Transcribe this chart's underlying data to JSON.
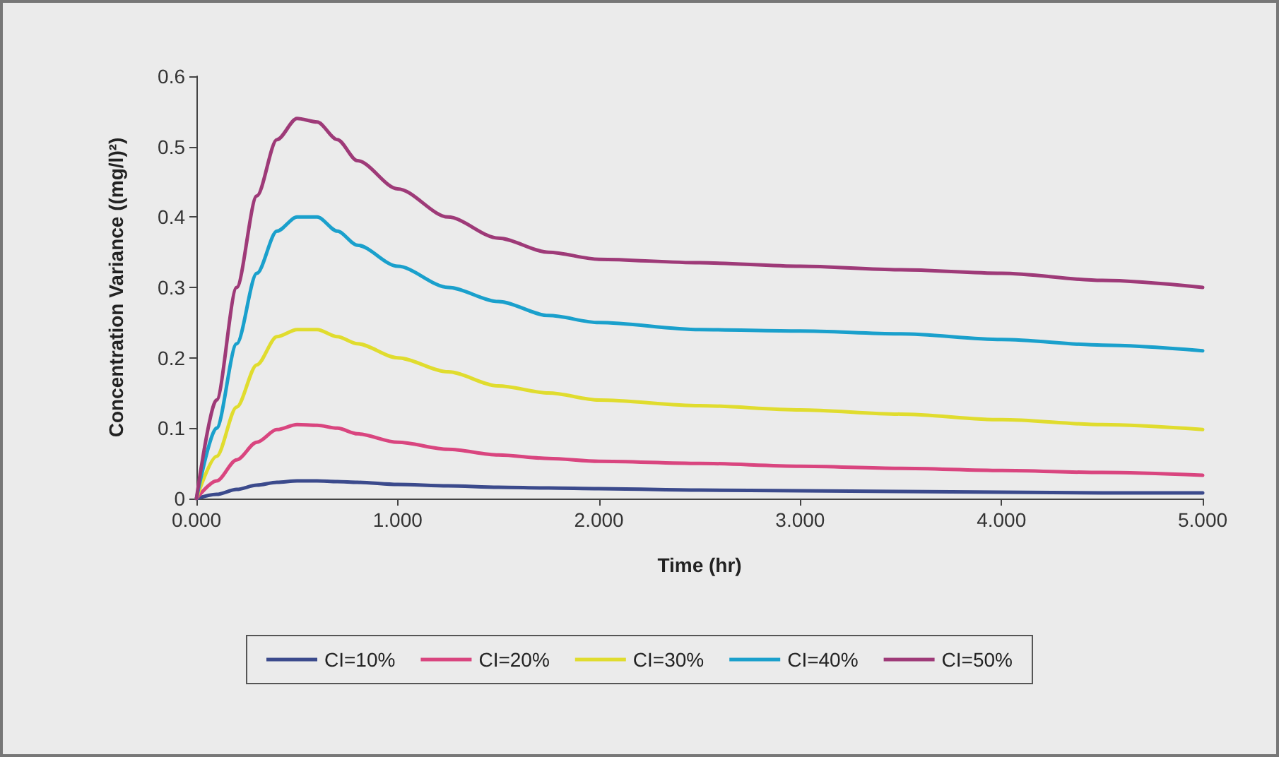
{
  "chart_data": {
    "type": "line",
    "xlabel": "Time (hr)",
    "ylabel": "Concentration Variance ((mg/l)²)",
    "x": [
      0,
      0.1,
      0.2,
      0.3,
      0.4,
      0.5,
      0.6,
      0.7,
      0.8,
      1.0,
      1.25,
      1.5,
      1.75,
      2,
      2.5,
      3,
      3.5,
      4,
      4.5,
      5
    ],
    "series": [
      {
        "name": "CI=10%",
        "color": "#3b4a8c",
        "values": [
          0,
          0.006,
          0.013,
          0.019,
          0.023,
          0.025,
          0.025,
          0.024,
          0.023,
          0.02,
          0.018,
          0.016,
          0.015,
          0.014,
          0.012,
          0.011,
          0.01,
          0.009,
          0.008,
          0.008
        ]
      },
      {
        "name": "CI=20%",
        "color": "#d9457f",
        "values": [
          0,
          0.025,
          0.055,
          0.08,
          0.098,
          0.105,
          0.104,
          0.1,
          0.092,
          0.08,
          0.07,
          0.062,
          0.057,
          0.053,
          0.05,
          0.046,
          0.043,
          0.04,
          0.037,
          0.033
        ]
      },
      {
        "name": "CI=30%",
        "color": "#e0dc2e",
        "values": [
          0,
          0.06,
          0.13,
          0.19,
          0.23,
          0.24,
          0.24,
          0.23,
          0.22,
          0.2,
          0.18,
          0.16,
          0.15,
          0.14,
          0.132,
          0.126,
          0.12,
          0.112,
          0.105,
          0.098
        ]
      },
      {
        "name": "CI=40%",
        "color": "#1aa0cc",
        "values": [
          0,
          0.1,
          0.22,
          0.32,
          0.38,
          0.4,
          0.4,
          0.38,
          0.36,
          0.33,
          0.3,
          0.28,
          0.26,
          0.25,
          0.24,
          0.238,
          0.234,
          0.226,
          0.218,
          0.21
        ]
      },
      {
        "name": "CI=50%",
        "color": "#9e3a78",
        "values": [
          0,
          0.14,
          0.3,
          0.43,
          0.51,
          0.54,
          0.535,
          0.51,
          0.48,
          0.44,
          0.4,
          0.37,
          0.35,
          0.34,
          0.335,
          0.33,
          0.325,
          0.32,
          0.31,
          0.3
        ]
      }
    ],
    "xlim": [
      0,
      5
    ],
    "xticks": [
      {
        "value": 0,
        "label": "0.000"
      },
      {
        "value": 1,
        "label": "1.000"
      },
      {
        "value": 2,
        "label": "2.000"
      },
      {
        "value": 3,
        "label": "3.000"
      },
      {
        "value": 4,
        "label": "4.000"
      },
      {
        "value": 5,
        "label": "5.000"
      }
    ],
    "ylim": [
      0,
      0.6
    ],
    "yticks": [
      0,
      0.1,
      0.2,
      0.3,
      0.4,
      0.5,
      0.6
    ],
    "grid": false,
    "legend": "bottom",
    "marker": "none",
    "line_style": "solid"
  }
}
